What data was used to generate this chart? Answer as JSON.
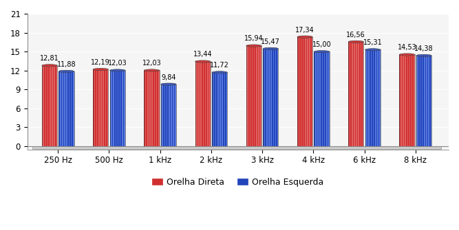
{
  "categories": [
    "250 Hz",
    "500 Hz",
    "1 kHz",
    "2 kHz",
    "3 kHz",
    "4 kHz",
    "6 kHz",
    "8 kHz"
  ],
  "orelha_direta": [
    12.81,
    12.19,
    12.03,
    13.44,
    15.94,
    17.34,
    16.56,
    14.53
  ],
  "orelha_esquerda": [
    11.88,
    12.03,
    9.84,
    11.72,
    15.47,
    15.0,
    15.31,
    14.38
  ],
  "red_dark": "#c00000",
  "red_mid": "#d03030",
  "red_light": "#e06060",
  "blue_dark": "#1a3080",
  "blue_mid": "#2244bb",
  "blue_light": "#5577dd",
  "bg_color": "#f5f5f5",
  "floor_color": "#cccccc",
  "ylim": [
    0,
    21
  ],
  "yticks": [
    0,
    3,
    6,
    9,
    12,
    15,
    18,
    21
  ],
  "legend_red": "Orelha Direta",
  "legend_blue": "Orelha Esquerda",
  "value_fontsize": 7.0,
  "label_fontsize": 8.5
}
